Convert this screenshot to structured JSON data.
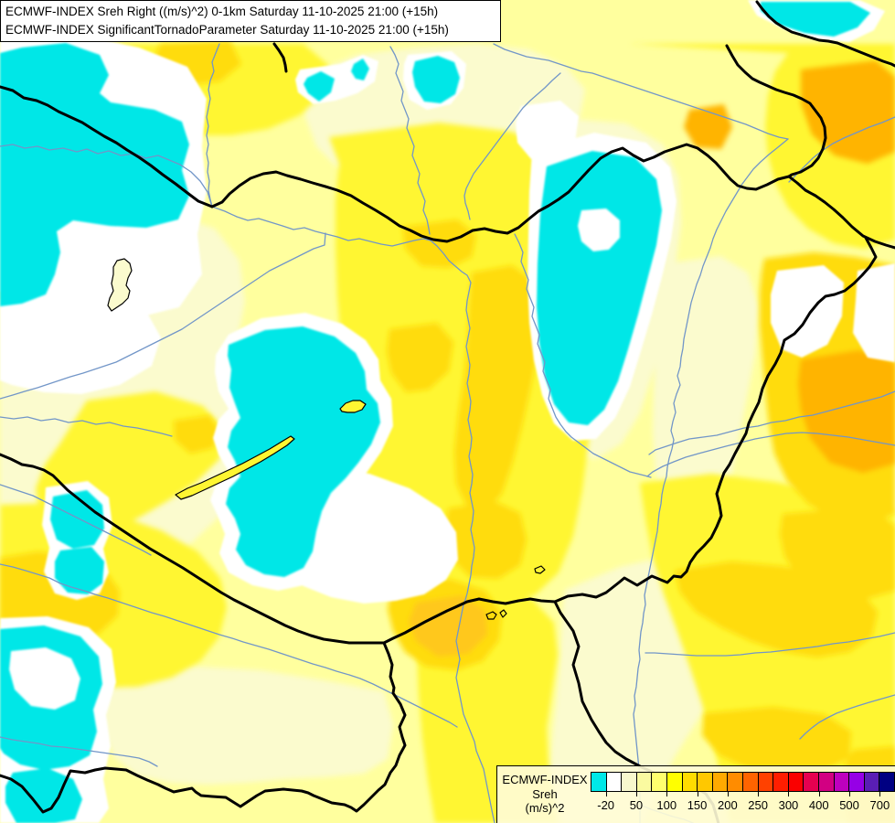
{
  "header": {
    "line1": "ECMWF-INDEX Sreh Right ((m/s)^2) 0-1km Saturday 11-10-2025 21:00 (+15h)",
    "line2": "ECMWF-INDEX SignificantTornadoParameter Saturday 11-10-2025 21:00 (+15h)"
  },
  "legend": {
    "title_line1": "ECMWF-INDEX",
    "title_line2": "Sreh",
    "title_line3": "(m/s)^2",
    "colors": [
      "#00e8e8",
      "#ffffff",
      "#f8f8cd",
      "#fafaa0",
      "#ffff6e",
      "#ffff00",
      "#ffdc00",
      "#ffc800",
      "#ffaa00",
      "#ff8c00",
      "#ff6400",
      "#ff4100",
      "#ff1e00",
      "#fa0000",
      "#e60050",
      "#d20082",
      "#be00be",
      "#9600e6",
      "#5a1eb4",
      "#000082"
    ],
    "tick_labels": [
      "-20",
      "50",
      "100",
      "150",
      "200",
      "250",
      "300",
      "400",
      "500",
      "700"
    ]
  },
  "map_palette": {
    "base": "#ffff9e",
    "pale": "#fbfbce",
    "bright_yellow": "#fff632",
    "gold": "#ffdc0a",
    "deep_gold": "#ffc81e",
    "amber": "#ffb400",
    "white": "#ffffff",
    "cyan": "#00e7e7",
    "river": "#7296c8",
    "border": "#000000",
    "red_spot": "#ff5a3c"
  }
}
